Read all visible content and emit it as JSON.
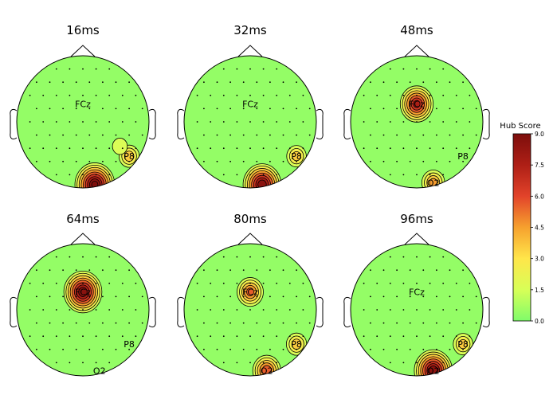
{
  "chart_data": {
    "type": "heatmap",
    "subtype": "eeg-topomap",
    "panels": [
      {
        "title": "16ms",
        "labels": [
          "FCz",
          "P8"
        ],
        "hotspots": [
          {
            "electrode": "Oz",
            "value": 9.0
          },
          {
            "electrode": "P8",
            "value": 3.2
          },
          {
            "electrode": "CP6",
            "value": 1.6
          }
        ]
      },
      {
        "title": "32ms",
        "labels": [
          "FCz",
          "P8"
        ],
        "hotspots": [
          {
            "electrode": "Oz",
            "value": 8.5
          },
          {
            "electrode": "P8",
            "value": 3.0
          }
        ]
      },
      {
        "title": "48ms",
        "labels": [
          "FCz",
          "P8",
          "O2"
        ],
        "hotspots": [
          {
            "electrode": "FCz",
            "value": 7.0
          },
          {
            "electrode": "O2",
            "value": 4.0
          }
        ]
      },
      {
        "title": "64ms",
        "labels": [
          "FCz",
          "P8",
          "O2"
        ],
        "hotspots": [
          {
            "electrode": "FCz",
            "value": 8.5
          }
        ]
      },
      {
        "title": "80ms",
        "labels": [
          "FCz",
          "P8",
          "O2"
        ],
        "hotspots": [
          {
            "electrode": "FCz",
            "value": 5.0
          },
          {
            "electrode": "O2",
            "value": 5.5
          },
          {
            "electrode": "P8",
            "value": 3.2
          }
        ]
      },
      {
        "title": "96ms",
        "labels": [
          "FCz",
          "P8",
          "O2"
        ],
        "hotspots": [
          {
            "electrode": "O2",
            "value": 8.5
          },
          {
            "electrode": "P8",
            "value": 3.0
          }
        ]
      }
    ],
    "colorbar": {
      "label": "Hub Score",
      "range": [
        0.0,
        9.0
      ],
      "ticks": [
        "0.0",
        "1.5",
        "3.0",
        "4.5",
        "6.0",
        "7.5",
        "9.0"
      ],
      "colormap": [
        "#7ffc6a",
        "#d8ff57",
        "#ffe64a",
        "#f6a12e",
        "#e2432a",
        "#ae1f16",
        "#7d0e0c"
      ]
    },
    "grid": false,
    "legend": "colorbar-right"
  }
}
